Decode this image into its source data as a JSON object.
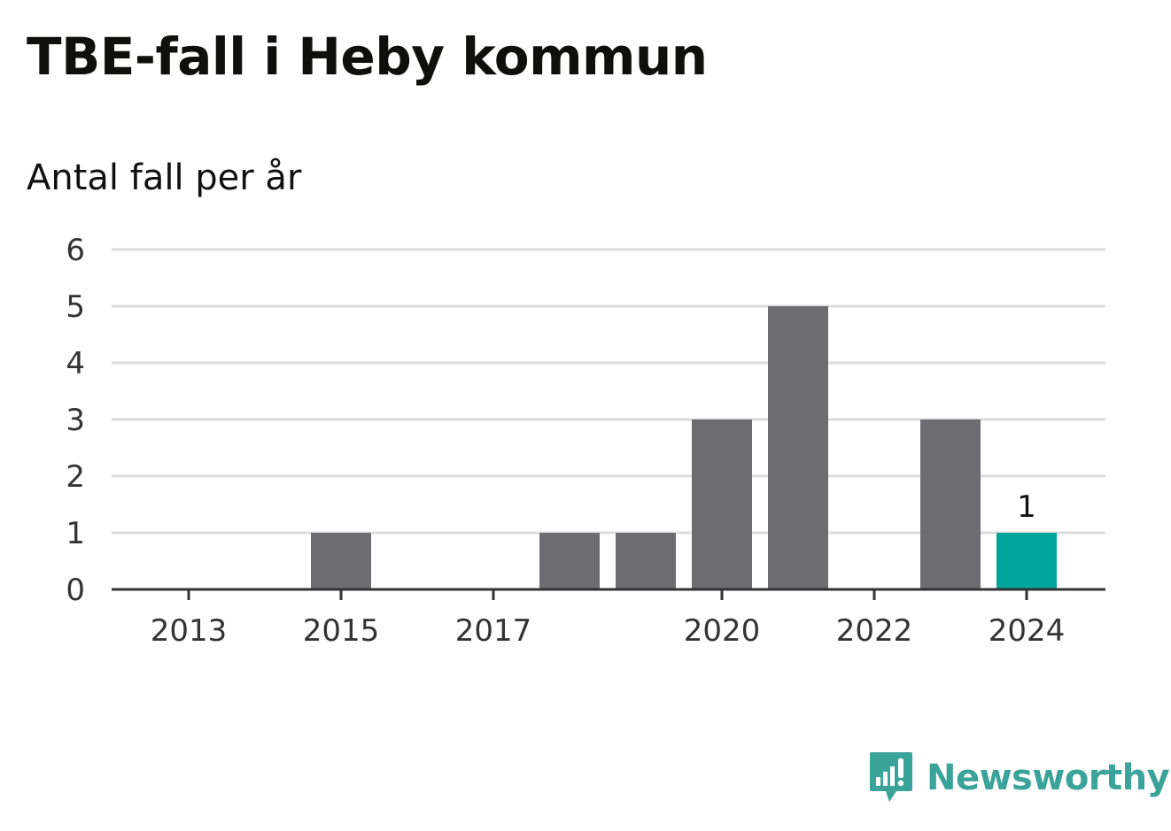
{
  "title": "TBE-fall i Heby kommun",
  "subtitle": "Antal fall per år",
  "brand": {
    "name": "Newsworthy",
    "icon": "chart-bubble-icon",
    "color": "#3aa39a"
  },
  "colors": {
    "bar": "#6d6d71",
    "highlight": "#00a59b",
    "grid": "#dddddd",
    "axis": "#333333"
  },
  "chart_data": {
    "type": "bar",
    "categories": [
      "2013",
      "2014",
      "2015",
      "2016",
      "2017",
      "2018",
      "2019",
      "2020",
      "2021",
      "2022",
      "2023",
      "2024"
    ],
    "values": [
      0,
      0,
      1,
      0,
      0,
      1,
      1,
      3,
      5,
      0,
      3,
      1
    ],
    "highlight_index": 11,
    "x_tick_labels": [
      "2013",
      "2015",
      "2017",
      "2020",
      "2022",
      "2024"
    ],
    "y_ticks": [
      0,
      1,
      2,
      3,
      4,
      5,
      6
    ],
    "ylim": [
      0,
      6
    ],
    "data_labels": [
      {
        "category": "2024",
        "text": "1"
      }
    ],
    "title": "TBE-fall i Heby kommun",
    "subtitle": "Antal fall per år",
    "xlabel": "",
    "ylabel": "",
    "grid": true,
    "legend": "none"
  }
}
